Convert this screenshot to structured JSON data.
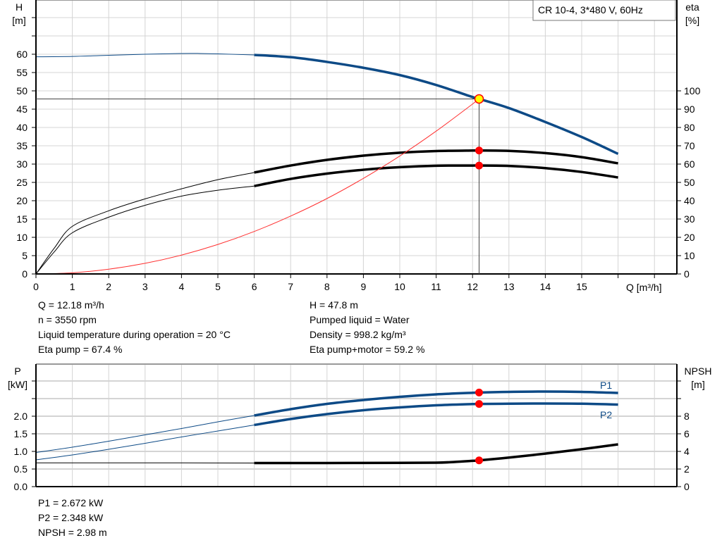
{
  "chart_data": [
    {
      "type": "line",
      "title_box": "CR 10-4, 3*480 V, 60Hz",
      "xlabel": "Q [m³/h]",
      "ylabel_left": [
        "H",
        "[m]"
      ],
      "ylabel_right": [
        "eta",
        "[%]"
      ],
      "xlim": [
        0,
        17.6
      ],
      "ylim_left": [
        0,
        75
      ],
      "ylim_right": [
        0,
        144
      ],
      "xticks": [
        0,
        1,
        2,
        3,
        4,
        5,
        6,
        7,
        8,
        9,
        10,
        11,
        12,
        13,
        14,
        15
      ],
      "yticks_left": [
        0,
        5,
        10,
        15,
        20,
        25,
        30,
        35,
        40,
        45,
        50,
        55,
        60
      ],
      "yticks_right": [
        0,
        10,
        20,
        30,
        40,
        50,
        60,
        70,
        80,
        90,
        100
      ],
      "grid": true,
      "series": [
        {
          "key": "H",
          "axis": "left",
          "color": "#0d4a86",
          "thick_from": 6,
          "x": [
            0,
            1,
            2,
            3,
            4,
            4.5,
            5,
            6,
            7,
            8,
            9,
            10,
            11,
            12,
            12.18,
            13,
            14,
            15,
            16
          ],
          "y": [
            59.3,
            59.4,
            59.7,
            60.0,
            60.2,
            60.2,
            60.1,
            59.8,
            59.2,
            57.9,
            56.3,
            54.3,
            51.6,
            48.3,
            47.8,
            45.3,
            41.5,
            37.4,
            32.8
          ]
        },
        {
          "key": "eta_pump",
          "axis": "right",
          "color": "#000000",
          "thick_from": 6,
          "x": [
            0,
            0.5,
            1,
            2,
            3,
            4,
            5,
            6,
            7,
            8,
            9,
            10,
            11,
            12,
            12.18,
            13,
            14,
            15,
            16
          ],
          "y": [
            0,
            14,
            26,
            34.5,
            41,
            46.5,
            51.5,
            55.4,
            59.2,
            62.3,
            64.6,
            66.2,
            67.1,
            67.4,
            67.4,
            67.2,
            66.0,
            63.8,
            60.4
          ]
        },
        {
          "key": "eta_pump_motor",
          "axis": "right",
          "color": "#000000",
          "thick_from": 6,
          "x": [
            0,
            0.5,
            1,
            2,
            3,
            4,
            5,
            6,
            7,
            8,
            9,
            10,
            11,
            12,
            12.18,
            13,
            14,
            15,
            16
          ],
          "y": [
            0,
            12,
            22.5,
            31,
            37.5,
            42.5,
            45.7,
            48.0,
            51.9,
            54.8,
            56.9,
            58.3,
            59.1,
            59.2,
            59.2,
            59.0,
            57.8,
            55.7,
            52.7
          ]
        },
        {
          "key": "system_curve",
          "axis": "left",
          "color": "#ff3030",
          "thin_only": true,
          "x": [
            0,
            1,
            2,
            3,
            4,
            5,
            6,
            7,
            8,
            9,
            10,
            11,
            12,
            12.18
          ],
          "y": [
            0,
            0.32,
            1.29,
            2.9,
            5.15,
            8.05,
            11.6,
            15.8,
            20.6,
            26.1,
            32.2,
            39.0,
            46.4,
            47.8
          ]
        }
      ],
      "operating_point": {
        "Q": 12.18,
        "H": 47.8,
        "eta_pump": 67.4,
        "eta_pump_motor": 59.2
      }
    },
    {
      "type": "line",
      "ylabel_left": [
        "P",
        "[kW]"
      ],
      "ylabel_right": [
        "NPSH",
        "[m]"
      ],
      "xlim": [
        0,
        17.6
      ],
      "ylim_left": [
        0,
        3.5
      ],
      "ylim_right": [
        0,
        14
      ],
      "yticks_left": [
        "0.0",
        "0.5",
        "1.0",
        "1.5",
        "2.0"
      ],
      "yticks_right": [
        0,
        2,
        4,
        6,
        8
      ],
      "grid": true,
      "series": [
        {
          "key": "P1",
          "name": "P1",
          "axis": "left",
          "color": "#0d4a86",
          "thick_from": 6,
          "x": [
            0,
            1,
            2,
            3,
            4,
            5,
            6,
            7,
            8,
            9,
            10,
            11,
            12,
            12.18,
            13,
            14,
            15,
            16
          ],
          "y": [
            0.97,
            1.12,
            1.29,
            1.47,
            1.65,
            1.84,
            2.02,
            2.2,
            2.35,
            2.46,
            2.55,
            2.62,
            2.665,
            2.672,
            2.69,
            2.7,
            2.69,
            2.66
          ]
        },
        {
          "key": "P2",
          "name": "P2",
          "axis": "left",
          "color": "#0d4a86",
          "thick_from": 6,
          "x": [
            0,
            1,
            2,
            3,
            4,
            5,
            6,
            7,
            8,
            9,
            10,
            11,
            12,
            12.18,
            13,
            14,
            15,
            16
          ],
          "y": [
            0.76,
            0.9,
            1.06,
            1.23,
            1.41,
            1.58,
            1.75,
            1.92,
            2.06,
            2.17,
            2.25,
            2.31,
            2.345,
            2.348,
            2.355,
            2.36,
            2.355,
            2.33
          ]
        },
        {
          "key": "NPSH",
          "axis": "right",
          "color": "#000000",
          "thick_from": 6,
          "x": [
            0,
            2,
            4,
            6,
            8,
            10,
            11,
            11.5,
            12,
            12.18,
            13,
            14,
            15,
            16
          ],
          "y": [
            2.7,
            2.7,
            2.7,
            2.68,
            2.68,
            2.7,
            2.72,
            2.8,
            2.93,
            2.98,
            3.3,
            3.75,
            4.25,
            4.8
          ]
        }
      ],
      "operating_point": {
        "Q": 12.18,
        "P1": 2.672,
        "P2": 2.348,
        "NPSH": 2.98
      }
    }
  ],
  "readout": {
    "q": "Q = 12.18 m³/h",
    "n": "n = 3550 rpm",
    "temp": "Liquid temperature during operation = 20 °C",
    "eta_pump": "Eta pump = 67.4 %",
    "h": "H = 47.8 m",
    "liquid": "Pumped liquid = Water",
    "density": "Density = 998.2 kg/m³",
    "eta_total": "Eta pump+motor = 59.2 %",
    "p1": "P1 = 2.672 kW",
    "p2": "P2 = 2.348 kW",
    "npsh": "NPSH = 2.98 m"
  },
  "colors": {
    "curve_blue": "#0d4a86",
    "grid": "#d0d0d0",
    "system_curve": "#ff3030",
    "marker_red": "#ff0000",
    "marker_yellow": "#ffff00"
  }
}
